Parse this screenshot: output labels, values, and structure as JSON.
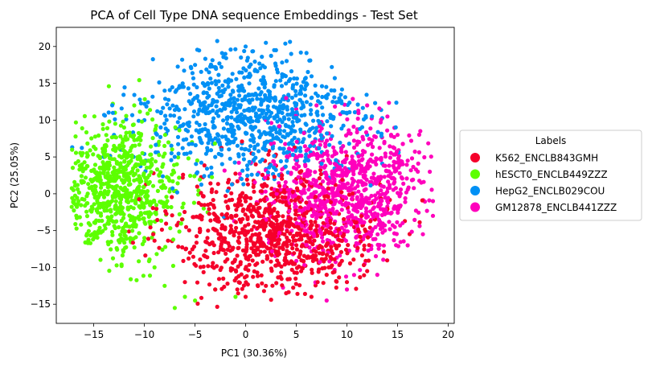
{
  "chart_data": {
    "type": "scatter",
    "title": "PCA of Cell Type DNA sequence Embeddings - Test Set",
    "xlabel": "PC1 (30.36%)",
    "ylabel": "PC2 (25.05%)",
    "xlim": [
      -18.7,
      20.6
    ],
    "ylim": [
      -17.6,
      22.6
    ],
    "xticks": [
      -15,
      -10,
      -5,
      0,
      5,
      10,
      15,
      20
    ],
    "yticks": [
      -15,
      -10,
      -5,
      0,
      5,
      10,
      15,
      20
    ],
    "grid": false,
    "legend": {
      "title": "Labels",
      "position": "center-right-outside"
    },
    "series": [
      {
        "name": "K562_ENCLB843GMH",
        "color": "#f5002a",
        "cluster": {
          "center": [
            3.0,
            -5.0
          ],
          "spread": [
            5.0,
            4.0
          ],
          "count": 900
        },
        "points": [
          [
            -6.0,
            -12.0
          ],
          [
            -3.0,
            -13.0
          ],
          [
            0.0,
            -14.0
          ],
          [
            2.0,
            -12.5
          ],
          [
            4.0,
            -13.5
          ],
          [
            6.5,
            -14.0
          ],
          [
            8.0,
            -11.0
          ],
          [
            10.0,
            -12.0
          ],
          [
            12.0,
            -10.5
          ],
          [
            5.0,
            2.0
          ],
          [
            1.0,
            4.0
          ],
          [
            -1.0,
            -3.0
          ],
          [
            3.0,
            -8.0
          ],
          [
            -4.0,
            -8.5
          ],
          [
            9.0,
            -5.0
          ]
        ]
      },
      {
        "name": "hESCT0_ENCLB449ZZZ",
        "color": "#5cff00",
        "cluster": {
          "center": [
            -12.5,
            0.5
          ],
          "spread": [
            3.0,
            4.5
          ],
          "count": 800
        },
        "points": [
          [
            -16.5,
            -1.0
          ],
          [
            -17.0,
            0.5
          ],
          [
            -15.5,
            -4.0
          ],
          [
            -14.0,
            4.0
          ],
          [
            -13.0,
            6.5
          ],
          [
            -12.0,
            9.0
          ],
          [
            -11.0,
            12.0
          ],
          [
            -10.0,
            -6.0
          ],
          [
            -9.0,
            -10.0
          ],
          [
            -8.0,
            -12.5
          ],
          [
            -7.0,
            -15.5
          ],
          [
            -6.0,
            -14.0
          ],
          [
            -5.0,
            -14.5
          ],
          [
            -3.0,
            -13.0
          ],
          [
            -1.0,
            -14.0
          ]
        ]
      },
      {
        "name": "HepG2_ENCLB029COU",
        "color": "#0090f5",
        "cluster": {
          "center": [
            0.5,
            10.5
          ],
          "spread": [
            5.5,
            4.2
          ],
          "count": 850
        },
        "points": [
          [
            0.0,
            20.0
          ],
          [
            2.0,
            20.5
          ],
          [
            3.0,
            19.5
          ],
          [
            -2.0,
            19.0
          ],
          [
            4.5,
            19.0
          ],
          [
            -5.0,
            17.5
          ],
          [
            -8.0,
            14.0
          ],
          [
            -10.0,
            10.0
          ],
          [
            -13.0,
            8.0
          ],
          [
            -14.0,
            5.0
          ],
          [
            6.0,
            15.0
          ],
          [
            8.0,
            13.0
          ],
          [
            10.0,
            11.0
          ],
          [
            12.0,
            8.0
          ],
          [
            -3.0,
            5.0
          ]
        ]
      },
      {
        "name": "GM12878_ENCLB441ZZZ",
        "color": "#ff00bc",
        "cluster": {
          "center": [
            10.0,
            0.5
          ],
          "spread": [
            3.8,
            4.5
          ],
          "count": 900
        },
        "points": [
          [
            14.0,
            10.5
          ],
          [
            15.0,
            8.0
          ],
          [
            16.0,
            4.5
          ],
          [
            17.0,
            3.0
          ],
          [
            18.5,
            -1.0
          ],
          [
            18.5,
            -3.0
          ],
          [
            17.5,
            -5.5
          ],
          [
            16.0,
            -7.0
          ],
          [
            13.0,
            -11.0
          ],
          [
            10.0,
            -13.0
          ],
          [
            8.0,
            -14.5
          ],
          [
            7.0,
            12.0
          ],
          [
            4.0,
            13.0
          ],
          [
            2.0,
            10.0
          ],
          [
            12.0,
            12.0
          ]
        ]
      }
    ]
  }
}
